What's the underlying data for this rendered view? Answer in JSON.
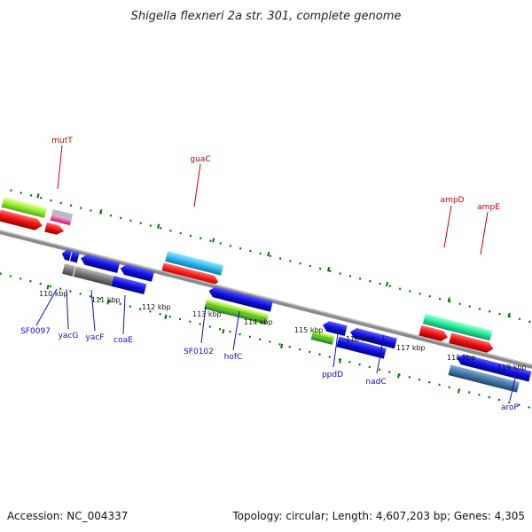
{
  "title": "Shigella flexneri 2a str. 301, complete genome",
  "footer": {
    "accession": "Accession: NC_004337",
    "summary": "Topology: circular; Length: 4,607,203 bp; Genes: 4,305"
  },
  "tick_labels": [
    "110 kbp",
    "111 kbp",
    "112 kbp",
    "113 kbp",
    "114 kbp",
    "115 kbp",
    "116 kbp",
    "117 kbp",
    "118 kbp",
    "119 kbp"
  ],
  "forward_gene_labels": [
    "mutT",
    "guaC",
    "ampD",
    "ampE"
  ],
  "reverse_gene_labels": [
    "SF0097",
    "yacG",
    "yacF",
    "coaE",
    "SF0102",
    "hofC",
    "ppdD",
    "nadC",
    "aroP"
  ],
  "colors": {
    "backbone": "#888888",
    "forward_label": "#c00000",
    "reverse_label": "#1010b0",
    "tick_dots": "#007000",
    "cds_red": "#ee1111",
    "cds_blue": "#1111dd",
    "cds_cyan": "#33bbee",
    "cds_green_light": "#99ee33",
    "cds_mint": "#22ee99",
    "cds_grey": "#777777",
    "cds_steel": "#4477aa",
    "cds_pink": "#ee2288"
  }
}
